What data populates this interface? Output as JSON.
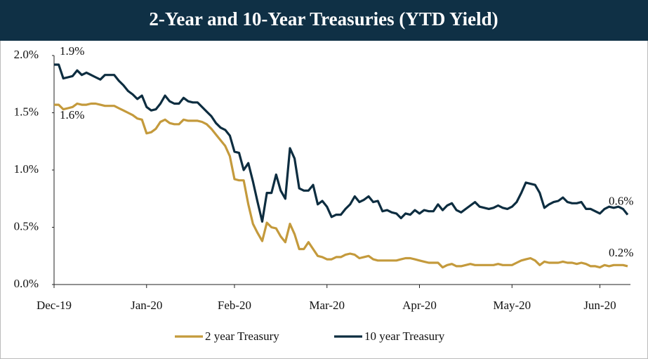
{
  "chart_data": {
    "type": "line",
    "title": "2-Year and 10-Year Treasuries (YTD Yield)",
    "categories": [
      "Dec-19",
      null,
      null,
      null,
      null,
      null,
      null,
      null,
      null,
      null,
      null,
      null,
      null,
      null,
      null,
      null,
      null,
      null,
      null,
      null,
      "Jan-20",
      null,
      null,
      null,
      null,
      null,
      null,
      null,
      null,
      null,
      null,
      null,
      null,
      null,
      null,
      null,
      null,
      null,
      null,
      "Feb-20",
      null,
      null,
      null,
      null,
      null,
      null,
      null,
      null,
      null,
      null,
      null,
      null,
      null,
      null,
      null,
      null,
      null,
      null,
      null,
      "Mar-20",
      null,
      null,
      null,
      null,
      null,
      null,
      null,
      null,
      null,
      null,
      null,
      null,
      null,
      null,
      null,
      null,
      null,
      null,
      null,
      "Apr-20",
      null,
      null,
      null,
      null,
      null,
      null,
      null,
      null,
      null,
      null,
      null,
      null,
      null,
      null,
      null,
      null,
      null,
      null,
      null,
      "May-20",
      null,
      null,
      null,
      null,
      null,
      null,
      null,
      null,
      null,
      null,
      null,
      null,
      null,
      null,
      null,
      null,
      null,
      null,
      "Jun-20",
      null,
      null,
      null,
      null,
      null,
      null
    ],
    "series": [
      {
        "name": "2 year Treasury",
        "color": "#c49a3c",
        "values": [
          1.57,
          1.57,
          1.53,
          1.54,
          1.55,
          1.58,
          1.57,
          1.57,
          1.58,
          1.58,
          1.57,
          1.56,
          1.56,
          1.56,
          1.54,
          1.52,
          1.5,
          1.48,
          1.45,
          1.44,
          1.32,
          1.33,
          1.36,
          1.42,
          1.44,
          1.41,
          1.4,
          1.4,
          1.44,
          1.43,
          1.43,
          1.43,
          1.42,
          1.4,
          1.36,
          1.31,
          1.26,
          1.21,
          1.12,
          0.92,
          0.91,
          0.91,
          0.7,
          0.53,
          0.45,
          0.38,
          0.54,
          0.5,
          0.49,
          0.42,
          0.37,
          0.53,
          0.44,
          0.31,
          0.31,
          0.37,
          0.31,
          0.25,
          0.24,
          0.22,
          0.22,
          0.24,
          0.24,
          0.26,
          0.27,
          0.26,
          0.23,
          0.24,
          0.25,
          0.22,
          0.21,
          0.21,
          0.21,
          0.21,
          0.21,
          0.22,
          0.23,
          0.23,
          0.22,
          0.21,
          0.2,
          0.19,
          0.19,
          0.19,
          0.15,
          0.17,
          0.18,
          0.16,
          0.16,
          0.17,
          0.18,
          0.17,
          0.17,
          0.17,
          0.17,
          0.17,
          0.18,
          0.17,
          0.17,
          0.17,
          0.19,
          0.21,
          0.22,
          0.23,
          0.21,
          0.17,
          0.2,
          0.19,
          0.19,
          0.19,
          0.2,
          0.19,
          0.19,
          0.18,
          0.19,
          0.18,
          0.16,
          0.16,
          0.15,
          0.17,
          0.16,
          0.17,
          0.17,
          0.17,
          0.16
        ],
        "value_labels": [
          "1.6%",
          null,
          null,
          null,
          null,
          null,
          null,
          null,
          null,
          null,
          null,
          null,
          null,
          null,
          null,
          null,
          null,
          null,
          null,
          null,
          null,
          null,
          null,
          null,
          null,
          null,
          null,
          null,
          null,
          null,
          null,
          null,
          null,
          null,
          null,
          null,
          null,
          null,
          null,
          null,
          null,
          null,
          null,
          null,
          null,
          null,
          null,
          null,
          null,
          null,
          null,
          null,
          null,
          null,
          null,
          null,
          null,
          null,
          null,
          null,
          null,
          null,
          null,
          null,
          null,
          null,
          null,
          null,
          null,
          null,
          null,
          null,
          null,
          null,
          null,
          null,
          null,
          null,
          null,
          null,
          null,
          null,
          null,
          null,
          null,
          null,
          null,
          null,
          null,
          null,
          null,
          null,
          null,
          null,
          null,
          null,
          null,
          null,
          null,
          null,
          null,
          null,
          null,
          null,
          null,
          null,
          null,
          null,
          null,
          null,
          null,
          null,
          null,
          null,
          null,
          null,
          null,
          null,
          null,
          null,
          null,
          null,
          null,
          null,
          "0.2%"
        ]
      },
      {
        "name": "10 year Treasury",
        "color": "#0d2d40",
        "values": [
          1.92,
          1.92,
          1.8,
          1.81,
          1.82,
          1.87,
          1.83,
          1.85,
          1.83,
          1.81,
          1.79,
          1.83,
          1.83,
          1.83,
          1.78,
          1.74,
          1.69,
          1.66,
          1.62,
          1.65,
          1.55,
          1.52,
          1.53,
          1.58,
          1.65,
          1.6,
          1.58,
          1.58,
          1.63,
          1.6,
          1.59,
          1.59,
          1.55,
          1.51,
          1.47,
          1.41,
          1.37,
          1.35,
          1.3,
          1.16,
          1.15,
          1.0,
          1.06,
          0.9,
          0.72,
          0.55,
          0.8,
          0.8,
          0.96,
          0.82,
          0.75,
          1.19,
          1.1,
          0.84,
          0.82,
          0.82,
          0.87,
          0.7,
          0.73,
          0.68,
          0.59,
          0.61,
          0.61,
          0.66,
          0.7,
          0.77,
          0.72,
          0.74,
          0.77,
          0.72,
          0.73,
          0.64,
          0.65,
          0.63,
          0.62,
          0.58,
          0.62,
          0.61,
          0.65,
          0.62,
          0.65,
          0.64,
          0.64,
          0.7,
          0.65,
          0.69,
          0.71,
          0.65,
          0.63,
          0.66,
          0.69,
          0.72,
          0.68,
          0.67,
          0.66,
          0.67,
          0.69,
          0.67,
          0.66,
          0.68,
          0.72,
          0.8,
          0.89,
          0.88,
          0.87,
          0.8,
          0.67,
          0.7,
          0.72,
          0.73,
          0.76,
          0.72,
          0.71,
          0.71,
          0.72,
          0.66,
          0.66,
          0.64,
          0.62,
          0.66,
          0.68,
          0.67,
          0.68,
          0.66,
          0.61
        ],
        "value_labels": [
          "1.9%",
          null,
          null,
          null,
          null,
          null,
          null,
          null,
          null,
          null,
          null,
          null,
          null,
          null,
          null,
          null,
          null,
          null,
          null,
          null,
          null,
          null,
          null,
          null,
          null,
          null,
          null,
          null,
          null,
          null,
          null,
          null,
          null,
          null,
          null,
          null,
          null,
          null,
          null,
          null,
          null,
          null,
          null,
          null,
          null,
          null,
          null,
          null,
          null,
          null,
          null,
          null,
          null,
          null,
          null,
          null,
          null,
          null,
          null,
          null,
          null,
          null,
          null,
          null,
          null,
          null,
          null,
          null,
          null,
          null,
          null,
          null,
          null,
          null,
          null,
          null,
          null,
          null,
          null,
          null,
          null,
          null,
          null,
          null,
          null,
          null,
          null,
          null,
          null,
          null,
          null,
          null,
          null,
          null,
          null,
          null,
          null,
          null,
          null,
          null,
          null,
          null,
          null,
          null,
          null,
          null,
          null,
          null,
          null,
          null,
          null,
          null,
          null,
          null,
          null,
          null,
          null,
          null,
          null,
          null,
          null,
          null,
          null,
          null,
          "0.6%"
        ]
      }
    ],
    "ylim": [
      0,
      2
    ],
    "yticks": [
      {
        "value": 0,
        "label": "0.0%"
      },
      {
        "value": 0.5,
        "label": "0.5%"
      },
      {
        "value": 1,
        "label": "1.0%"
      },
      {
        "value": 1.5,
        "label": "1.5%"
      },
      {
        "value": 2,
        "label": "2.0%"
      }
    ],
    "grid": false,
    "legend": "bottom"
  }
}
